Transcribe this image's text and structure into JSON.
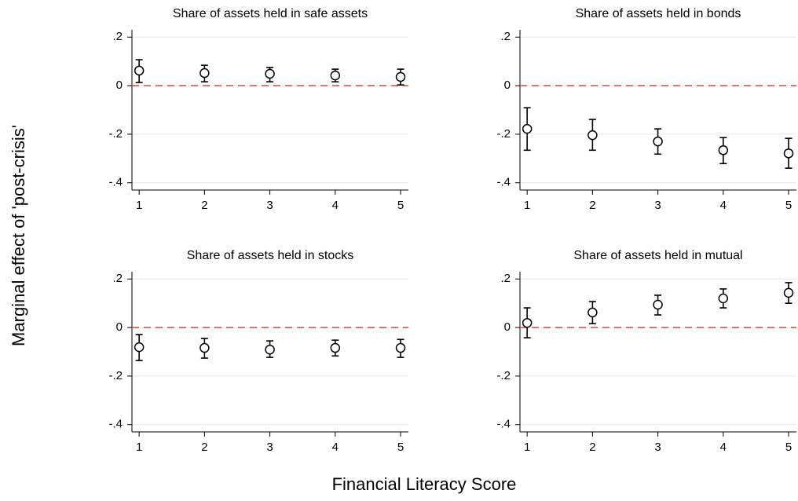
{
  "ylabel": "Marginal effect of 'post-crisis'",
  "xlabel": "Financial Literacy Score",
  "chart_data": [
    {
      "type": "errorbar",
      "title": "Share of assets held in safe assets",
      "x": [
        1,
        2,
        3,
        4,
        5
      ],
      "values": [
        0.062,
        0.052,
        0.049,
        0.042,
        0.036
      ],
      "lower": [
        0.013,
        0.016,
        0.016,
        0.016,
        0.003
      ],
      "upper": [
        0.107,
        0.084,
        0.075,
        0.068,
        0.068
      ],
      "color": "#000000",
      "refline": 0,
      "refline_color": "#d9534f",
      "xlim": [
        0.89,
        5.12
      ],
      "xticks": [
        1,
        2,
        3,
        4,
        5
      ],
      "ylim": [
        -0.43,
        0.23
      ],
      "yticks": [
        {
          "value": 0.2,
          "label": ".2"
        },
        0,
        {
          "value": -0.2,
          "label": "-.2"
        },
        {
          "value": -0.4,
          "label": "-.4"
        }
      ],
      "grid": true
    },
    {
      "type": "errorbar",
      "title": "Share of assets held in bonds",
      "x": [
        1,
        2,
        3,
        4,
        5
      ],
      "values": [
        -0.178,
        -0.204,
        -0.23,
        -0.266,
        -0.279
      ],
      "lower": [
        -0.266,
        -0.266,
        -0.282,
        -0.321,
        -0.34
      ],
      "upper": [
        -0.091,
        -0.139,
        -0.178,
        -0.214,
        -0.217
      ],
      "color": "#000000",
      "refline": 0,
      "refline_color": "#d9534f",
      "xlim": [
        0.89,
        5.12
      ],
      "xticks": [
        1,
        2,
        3,
        4,
        5
      ],
      "ylim": [
        -0.43,
        0.23
      ],
      "yticks": [
        {
          "value": 0.2,
          "label": ".2"
        },
        0,
        {
          "value": -0.2,
          "label": "-.2"
        },
        {
          "value": -0.4,
          "label": "-.4"
        }
      ],
      "grid": true
    },
    {
      "type": "errorbar",
      "title": "Share of assets held in stocks",
      "x": [
        1,
        2,
        3,
        4,
        5
      ],
      "values": [
        -0.081,
        -0.084,
        -0.091,
        -0.084,
        -0.084
      ],
      "lower": [
        -0.136,
        -0.126,
        -0.123,
        -0.117,
        -0.123
      ],
      "upper": [
        -0.029,
        -0.045,
        -0.055,
        -0.052,
        -0.049
      ],
      "color": "#000000",
      "refline": 0,
      "refline_color": "#d9534f",
      "xlim": [
        0.89,
        5.12
      ],
      "xticks": [
        1,
        2,
        3,
        4,
        5
      ],
      "ylim": [
        -0.43,
        0.23
      ],
      "yticks": [
        {
          "value": 0.2,
          "label": ".2"
        },
        0,
        {
          "value": -0.2,
          "label": "-.2"
        },
        {
          "value": -0.4,
          "label": "-.4"
        }
      ],
      "grid": true
    },
    {
      "type": "errorbar",
      "title": "Share of assets held in mutual",
      "x": [
        1,
        2,
        3,
        4,
        5
      ],
      "values": [
        0.019,
        0.062,
        0.094,
        0.12,
        0.143
      ],
      "lower": [
        -0.042,
        0.016,
        0.052,
        0.081,
        0.1
      ],
      "upper": [
        0.081,
        0.107,
        0.133,
        0.159,
        0.185
      ],
      "color": "#000000",
      "refline": 0,
      "refline_color": "#d9534f",
      "xlim": [
        0.89,
        5.12
      ],
      "xticks": [
        1,
        2,
        3,
        4,
        5
      ],
      "ylim": [
        -0.43,
        0.23
      ],
      "yticks": [
        {
          "value": 0.2,
          "label": ".2"
        },
        0,
        {
          "value": -0.2,
          "label": "-.2"
        },
        {
          "value": -0.4,
          "label": "-.4"
        }
      ],
      "grid": true
    }
  ]
}
